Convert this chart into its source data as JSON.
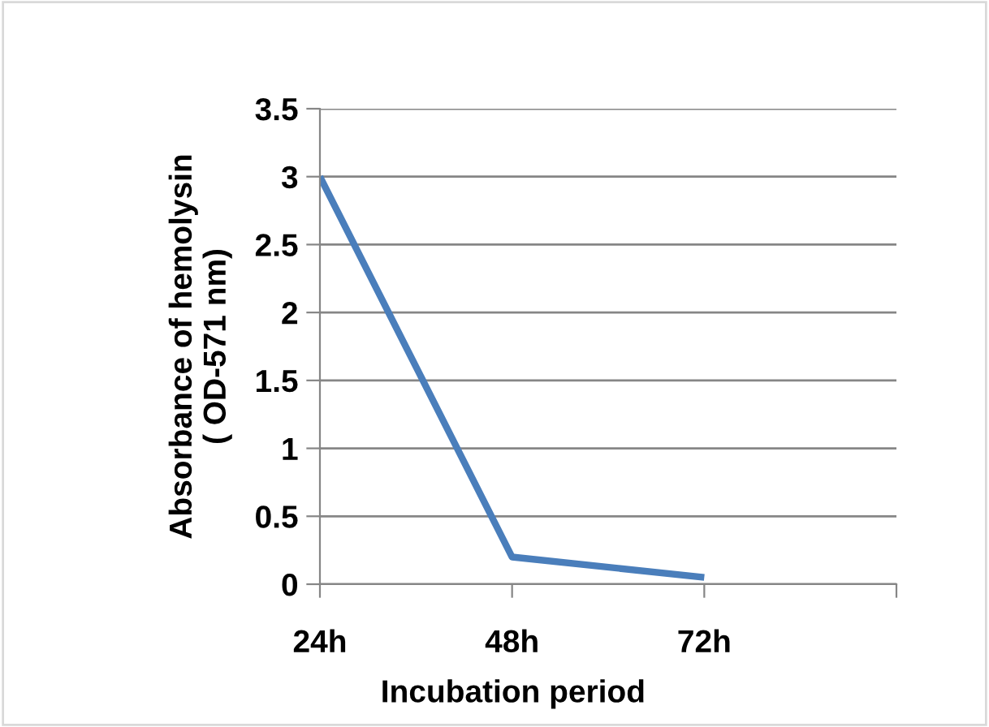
{
  "chart_data": {
    "type": "line",
    "xlabel": "Incubation period",
    "ylabel": "Absorbance of hemolysin\n( OD-571 nm)",
    "categories": [
      "24h",
      "48h",
      "72h",
      null
    ],
    "series": [
      {
        "color": "#4a7ebb",
        "values": [
          3,
          0.2,
          0.05,
          null
        ]
      }
    ],
    "ylim": [
      0,
      3.5
    ],
    "yticks": [
      0,
      0.5,
      1,
      1.5,
      2,
      2.5,
      3,
      3.5
    ],
    "grid": "y",
    "marker": "none",
    "line_style": "solid"
  }
}
